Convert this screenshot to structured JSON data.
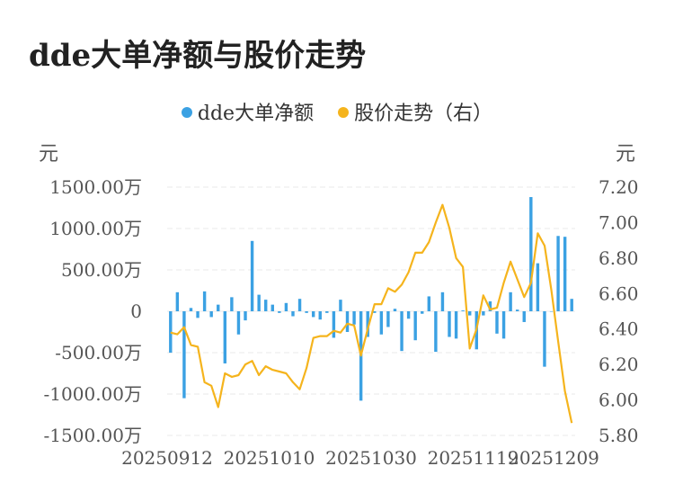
{
  "title": "dde大单净额与股价走势",
  "legend": {
    "series1": "dde大单净额",
    "series2": "股价走势（右）"
  },
  "axes": {
    "left_unit": "元",
    "right_unit": "元"
  },
  "colors": {
    "bar": "#3ba1e3",
    "line": "#f5b41d",
    "grid": "#e8e8e8",
    "text": "#555555"
  },
  "chart_data": {
    "type": "bar+line",
    "title": "dde大单净额与股价走势",
    "x_tick_labels": [
      "20250912",
      "20251010",
      "20251030",
      "20251119",
      "20251209"
    ],
    "left_axis": {
      "label": "元",
      "ylim": [
        -1500,
        1500
      ],
      "ticks": [
        1500,
        1000,
        500,
        0,
        -500,
        -1000,
        -1500
      ],
      "tick_labels": [
        "1500.00万",
        "1000.00万",
        "500.00万",
        "0",
        "-500.00万",
        "-1000.00万",
        "-1500.00万"
      ]
    },
    "right_axis": {
      "label": "元",
      "ylim": [
        5.8,
        7.2
      ],
      "ticks": [
        7.2,
        7.0,
        6.8,
        6.6,
        6.4,
        6.2,
        6.0,
        5.8
      ],
      "tick_labels": [
        "7.20",
        "7.00",
        "6.80",
        "6.60",
        "6.40",
        "6.20",
        "6.00",
        "5.80"
      ]
    },
    "grid": true,
    "legend_position": "top-center",
    "series": [
      {
        "name": "dde大单净额",
        "type": "bar",
        "axis": "left",
        "values": [
          -500,
          230,
          -1050,
          40,
          -80,
          240,
          -70,
          80,
          -630,
          170,
          -280,
          -110,
          850,
          200,
          140,
          80,
          -20,
          100,
          -60,
          150,
          -20,
          -70,
          -100,
          -20,
          -320,
          140,
          -250,
          -160,
          -1080,
          -310,
          -20,
          -280,
          -190,
          30,
          -480,
          -90,
          -350,
          -30,
          180,
          -490,
          230,
          -310,
          -330,
          10,
          -50,
          -460,
          -50,
          120,
          -270,
          -330,
          230,
          20,
          -130,
          1380,
          580,
          -670,
          0,
          910,
          900,
          150
        ]
      },
      {
        "name": "股价走势（右）",
        "type": "line",
        "axis": "right",
        "values": [
          6.38,
          6.37,
          6.41,
          6.31,
          6.3,
          6.1,
          6.08,
          5.96,
          6.15,
          6.13,
          6.14,
          6.2,
          6.22,
          6.14,
          6.19,
          6.17,
          6.16,
          6.15,
          6.1,
          6.06,
          6.18,
          6.35,
          6.36,
          6.36,
          6.39,
          6.38,
          6.43,
          6.42,
          6.25,
          6.4,
          6.54,
          6.54,
          6.63,
          6.61,
          6.65,
          6.72,
          6.83,
          6.83,
          6.89,
          7.0,
          7.1,
          6.97,
          6.8,
          6.75,
          6.29,
          6.4,
          6.59,
          6.51,
          6.52,
          6.66,
          6.78,
          6.68,
          6.58,
          6.66,
          6.94,
          6.87,
          6.62,
          6.33,
          6.05,
          5.87
        ]
      }
    ]
  }
}
